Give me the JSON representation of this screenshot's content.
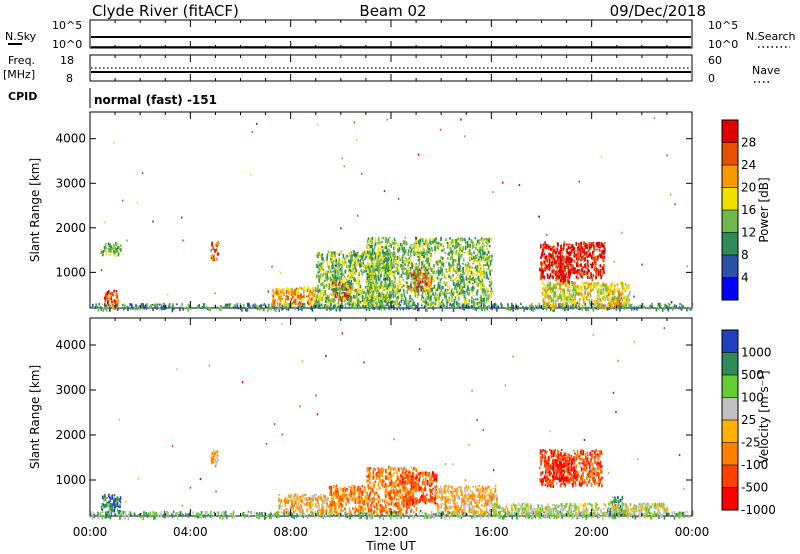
{
  "header": {
    "station": "Clyde River (fitACF)",
    "beam": "Beam 02",
    "date": "09/Dec/2018"
  },
  "sky_panel": {
    "left_label": "N.Sky",
    "left_ticks": [
      "10^5",
      "10^0"
    ],
    "right_ticks": [
      "10^5",
      "10^0"
    ],
    "right_label": "N.Search"
  },
  "freq_panel": {
    "left_label_1": "Freq.",
    "left_label_2": "[MHz]",
    "left_ticks": [
      "18",
      "8"
    ],
    "right_ticks": [
      "60",
      "0"
    ],
    "right_label": "Nave"
  },
  "cpid": {
    "label": "CPID",
    "text": "normal (fast) -151"
  },
  "colors": {
    "power": [
      "#0000ff",
      "#2c4fa8",
      "#2e8b57",
      "#6db84f",
      "#f0e000",
      "#f59a00",
      "#e85000",
      "#e00000"
    ],
    "velocity": [
      "#2040c0",
      "#2e8b57",
      "#66cc33",
      "#c0c0c0",
      "#ffb000",
      "#ff8000",
      "#ff4000",
      "#ff0000"
    ]
  },
  "chart_data": [
    {
      "type": "heatmap",
      "name": "power",
      "ylabel": "Slant Range [km]",
      "xlim": [
        0,
        24
      ],
      "ylim": [
        200,
        4600
      ],
      "yticks": [
        "1000",
        "2000",
        "3000",
        "4000"
      ],
      "ytick_values": [
        1000,
        2000,
        3000,
        4000
      ],
      "colorbar_label": "Power [dB]",
      "colorbar_ticks": [
        "4",
        "8",
        "12",
        "16",
        "20",
        "24",
        "28"
      ],
      "colorbar_range": [
        0,
        32
      ],
      "regions": [
        {
          "t0": 0.0,
          "t1": 24.0,
          "r0": 200,
          "r1": 320,
          "level": 2
        },
        {
          "t0": 0.5,
          "t1": 1.1,
          "r0": 260,
          "r1": 620,
          "level": 6
        },
        {
          "t0": 0.4,
          "t1": 1.2,
          "r0": 1400,
          "r1": 1700,
          "level": 3
        },
        {
          "t0": 4.8,
          "t1": 5.1,
          "r0": 1300,
          "r1": 1700,
          "level": 6
        },
        {
          "t0": 7.2,
          "t1": 9.0,
          "r0": 300,
          "r1": 700,
          "level": 5
        },
        {
          "t0": 9.6,
          "t1": 10.4,
          "r0": 400,
          "r1": 800,
          "level": 7
        },
        {
          "t0": 9.0,
          "t1": 12.0,
          "r0": 300,
          "r1": 1500,
          "level": 3
        },
        {
          "t0": 12.6,
          "t1": 13.6,
          "r0": 600,
          "r1": 1100,
          "level": 6
        },
        {
          "t0": 11.0,
          "t1": 16.0,
          "r0": 300,
          "r1": 1800,
          "level": 3
        },
        {
          "t0": 17.9,
          "t1": 20.5,
          "r0": 900,
          "r1": 1700,
          "level": 7
        },
        {
          "t0": 18.6,
          "t1": 19.2,
          "r0": 800,
          "r1": 1400,
          "level": 7
        },
        {
          "t0": 20.6,
          "t1": 21.2,
          "r0": 250,
          "r1": 650,
          "level": 5
        },
        {
          "t0": 18.0,
          "t1": 21.5,
          "r0": 250,
          "r1": 800,
          "level": 4
        }
      ]
    },
    {
      "type": "heatmap",
      "name": "velocity",
      "xlabel": "Time UT",
      "ylabel": "Slant Range [km]",
      "xlim": [
        0,
        24
      ],
      "ylim": [
        200,
        4600
      ],
      "xticks": [
        "00:00",
        "04:00",
        "08:00",
        "12:00",
        "16:00",
        "20:00",
        "00:00"
      ],
      "xtick_values": [
        0,
        4,
        8,
        12,
        16,
        20,
        24
      ],
      "yticks": [
        "1000",
        "2000",
        "3000",
        "4000"
      ],
      "ytick_values": [
        1000,
        2000,
        3000,
        4000
      ],
      "colorbar_label": "Velocity [m s⁻¹]",
      "colorbar_ticks": [
        "1000",
        "500",
        "100",
        "25",
        "-25",
        "-100",
        "-500",
        "-1000"
      ],
      "regions": [
        {
          "t0": 0.0,
          "t1": 24.0,
          "r0": 200,
          "r1": 320,
          "level": 2
        },
        {
          "t0": 0.4,
          "t1": 1.2,
          "r0": 250,
          "r1": 700,
          "level": 1
        },
        {
          "t0": 4.8,
          "t1": 5.1,
          "r0": 1300,
          "r1": 1700,
          "level": 4
        },
        {
          "t0": 7.5,
          "t1": 9.5,
          "r0": 300,
          "r1": 700,
          "level": 4
        },
        {
          "t0": 9.5,
          "t1": 11.0,
          "r0": 300,
          "r1": 900,
          "level": 5
        },
        {
          "t0": 11.0,
          "t1": 13.0,
          "r0": 300,
          "r1": 1300,
          "level": 5
        },
        {
          "t0": 12.4,
          "t1": 13.8,
          "r0": 500,
          "r1": 1200,
          "level": 6
        },
        {
          "t0": 13.8,
          "t1": 16.2,
          "r0": 300,
          "r1": 900,
          "level": 4
        },
        {
          "t0": 17.9,
          "t1": 20.4,
          "r0": 900,
          "r1": 1700,
          "level": 6
        },
        {
          "t0": 18.4,
          "t1": 19.4,
          "r0": 1000,
          "r1": 1500,
          "level": 7
        },
        {
          "t0": 20.6,
          "t1": 21.2,
          "r0": 250,
          "r1": 650,
          "level": 1
        },
        {
          "t0": 16.0,
          "t1": 23.0,
          "r0": 250,
          "r1": 500,
          "level": 3
        }
      ]
    }
  ]
}
